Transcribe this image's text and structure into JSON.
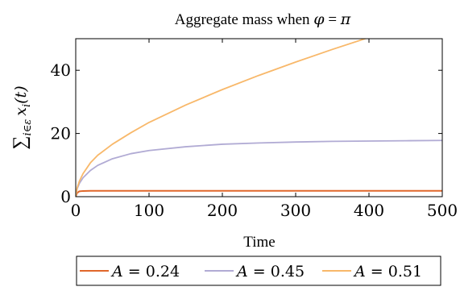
{
  "chart_data": {
    "type": "line",
    "title": "Aggregate mass when φ = π",
    "title_parts": {
      "prefix": "Aggregate mass when ",
      "phi": "φ",
      "eq": " = ",
      "pi": "π"
    },
    "xlabel": "Time",
    "ylabel": "∑i∈ε xi(t)",
    "ylabel_parts": {
      "sum": "∑",
      "sub": "i∈ε",
      "x": "x",
      "xsub": "i",
      "arg": "(t)"
    },
    "xlim": [
      0,
      500
    ],
    "ylim": [
      0,
      50
    ],
    "xticks": [
      0,
      100,
      200,
      300,
      400,
      500
    ],
    "yticks": [
      0,
      20,
      40
    ],
    "xtick_labels": [
      "0",
      "100",
      "200",
      "300",
      "400",
      "500"
    ],
    "ytick_labels": [
      "0",
      "20",
      "40"
    ],
    "grid": false,
    "legend_position": "bottom",
    "x": [
      0,
      2,
      5,
      10,
      20,
      30,
      50,
      75,
      100,
      150,
      200,
      250,
      300,
      350,
      400,
      450,
      500
    ],
    "series": [
      {
        "name": "A = 0.24",
        "legend_var": "A",
        "legend_eq": " = ",
        "legend_val": "0.24",
        "color": "#e0672a",
        "values": [
          0,
          1.2,
          1.7,
          1.8,
          1.85,
          1.85,
          1.85,
          1.85,
          1.85,
          1.85,
          1.85,
          1.85,
          1.85,
          1.85,
          1.85,
          1.85,
          1.85
        ]
      },
      {
        "name": "A = 0.45",
        "legend_var": "A",
        "legend_eq": " = ",
        "legend_val": "0.45",
        "color": "#b1abd4",
        "values": [
          0,
          2.5,
          4.2,
          6.0,
          8.3,
          9.9,
          12.0,
          13.6,
          14.6,
          15.8,
          16.6,
          17.0,
          17.3,
          17.5,
          17.6,
          17.7,
          17.8
        ]
      },
      {
        "name": "A = 0.51",
        "legend_var": "A",
        "legend_eq": " = ",
        "legend_val": "0.51",
        "color": "#f8b86a",
        "values": [
          0,
          2.8,
          4.9,
          7.3,
          10.7,
          13.1,
          16.6,
          20.2,
          23.5,
          29.0,
          33.9,
          38.4,
          42.6,
          46.6,
          50.4,
          null,
          null
        ]
      }
    ]
  }
}
